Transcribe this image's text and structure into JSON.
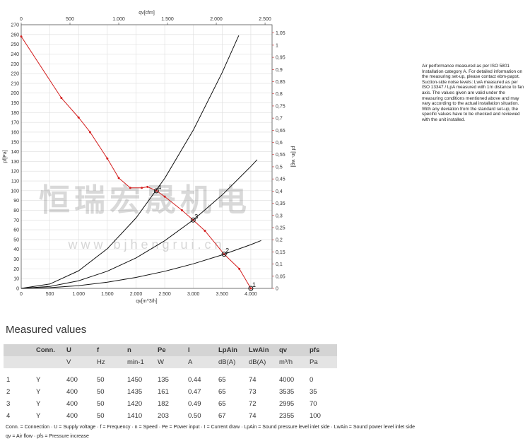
{
  "chart_data": {
    "type": "line",
    "xlabel": "qv[m^3/h]",
    "x2label": "qv[cfm]",
    "ylabel": "pf[Pa]",
    "y2label": "pf [in. wg]",
    "watermark": "恒瑞宏晟机电",
    "watermark2": "w w w . b j h e n g r u i . c n",
    "xlim": [
      0,
      4370
    ],
    "xticks": [
      0,
      500,
      {
        "value": 1000,
        "label": "1.000"
      },
      {
        "value": 1500,
        "label": "1.500"
      },
      {
        "value": 2000,
        "label": "2.000"
      },
      {
        "value": 2500,
        "label": "2.500"
      },
      {
        "value": 3000,
        "label": "3.000"
      },
      {
        "value": 3500,
        "label": "3.500"
      },
      {
        "value": 4000,
        "label": "4.000"
      }
    ],
    "x2lim": [
      0,
      2572
    ],
    "x2ticks": [
      0,
      500,
      {
        "value": 1000,
        "label": "1.000"
      },
      {
        "value": 1500,
        "label": "1.500"
      },
      {
        "value": 2000,
        "label": "2.000"
      },
      {
        "value": 2500,
        "label": "2.500"
      }
    ],
    "ylim": [
      0,
      270
    ],
    "yticks": [
      0,
      10,
      20,
      30,
      40,
      50,
      60,
      70,
      80,
      90,
      100,
      110,
      120,
      130,
      140,
      150,
      160,
      170,
      180,
      190,
      200,
      210,
      220,
      230,
      240,
      250,
      260,
      270
    ],
    "y2lim": [
      0,
      1.084
    ],
    "y2ticks": [
      0,
      {
        "value": 0.05,
        "label": "0,05"
      },
      {
        "value": 0.1,
        "label": "0,1"
      },
      {
        "value": 0.15,
        "label": "0,15"
      },
      {
        "value": 0.2,
        "label": "0,2"
      },
      {
        "value": 0.25,
        "label": "0,25"
      },
      {
        "value": 0.3,
        "label": "0,3"
      },
      {
        "value": 0.35,
        "label": "0,35"
      },
      {
        "value": 0.4,
        "label": "0,4"
      },
      {
        "value": 0.45,
        "label": "0,45"
      },
      {
        "value": 0.5,
        "label": "0,5"
      },
      {
        "value": 0.55,
        "label": "0,55"
      },
      {
        "value": 0.6,
        "label": "0,6"
      },
      {
        "value": 0.65,
        "label": "0,65"
      },
      {
        "value": 0.7,
        "label": "0,7"
      },
      {
        "value": 0.75,
        "label": "0,75"
      },
      {
        "value": 0.8,
        "label": "0,8"
      },
      {
        "value": 0.85,
        "label": "0,85"
      },
      {
        "value": 0.9,
        "label": "0,9"
      },
      {
        "value": 0.95,
        "label": "0,95"
      },
      {
        "value": 1,
        "label": "1"
      },
      {
        "value": 1.05,
        "label": "1,05"
      }
    ],
    "grid": true,
    "series": [
      {
        "color": "#d42020",
        "markers": true,
        "x": [
          0,
          700,
          1000,
          1200,
          1500,
          1700,
          1900,
          2100,
          2200,
          2355,
          2500,
          2800,
          2995,
          3200,
          3535,
          3800,
          4000
        ],
        "values": [
          258,
          195,
          175,
          160,
          133,
          113,
          103,
          103,
          104,
          100,
          94,
          80,
          70,
          59,
          35,
          20,
          0
        ]
      },
      {
        "color": "#111111",
        "markers": false,
        "x": [
          0,
          500,
          1000,
          1500,
          2000,
          2500,
          3000,
          3500,
          3790
        ],
        "values": [
          0,
          4.5,
          18,
          40.6,
          72.1,
          112.7,
          162.3,
          220.9,
          259
        ]
      },
      {
        "color": "#111111",
        "markers": false,
        "x": [
          0,
          500,
          1000,
          1500,
          2000,
          2500,
          3000,
          3500,
          4000,
          4110
        ],
        "values": [
          0,
          2,
          7.8,
          17.6,
          31.2,
          48.8,
          70.2,
          95.6,
          124.9,
          131.8
        ]
      },
      {
        "color": "#111111",
        "markers": false,
        "x": [
          0,
          500,
          1000,
          1500,
          2000,
          2500,
          3000,
          3500,
          4000,
          4180
        ],
        "values": [
          0,
          0.7,
          2.8,
          6.3,
          11.2,
          17.5,
          25.2,
          34.3,
          44.8,
          49
        ]
      }
    ],
    "points": {
      "x": [
        4000,
        3535,
        2995,
        2355
      ],
      "values": [
        0,
        35,
        70,
        100
      ],
      "labels": [
        "1",
        "2",
        "3",
        "4"
      ]
    }
  },
  "note": "Air performance measured as per ISO 5801 Installation category A. For detailed information on the measuring set-up, please contact ebm-papst. Suction-side noise levels: LwA measured as per ISO 13347 / LpA measured with 1m distance to fan axis. The values given are valid under the measuring conditions mentioned above and may vary according to the actual installation situation. With any deviation from the standard set-up, the specific values have to be checked and reviewed with the unit installed.",
  "table": {
    "title": "Measured values",
    "header": [
      "Conn.",
      "U",
      "f",
      "n",
      "Pe",
      "I",
      "LpAin",
      "LwAin",
      "qv",
      "pfs"
    ],
    "units": [
      "V",
      "Hz",
      "min-1",
      "W",
      "A",
      "dB(A)",
      "dB(A)",
      "m³/h",
      "Pa"
    ],
    "rows": [
      [
        "1",
        "Y",
        "400",
        "50",
        "1450",
        "135",
        "0.44",
        "65",
        "74",
        "4000",
        "0"
      ],
      [
        "2",
        "Y",
        "400",
        "50",
        "1435",
        "161",
        "0.47",
        "65",
        "73",
        "3535",
        "35"
      ],
      [
        "3",
        "Y",
        "400",
        "50",
        "1420",
        "182",
        "0.49",
        "65",
        "72",
        "2995",
        "70"
      ],
      [
        "4",
        "Y",
        "400",
        "50",
        "1410",
        "203",
        "0.50",
        "67",
        "74",
        "2355",
        "100"
      ]
    ]
  },
  "footnote": [
    "Conn. = Connection · U = Supply voltage · f = Frequency · n = Speed · Pe = Power input · I = Current draw · LpAin = Sound pressure level inlet side · LwAin = Sound power level inlet side",
    "qv = Air flow · pfs = Pressure increase"
  ]
}
